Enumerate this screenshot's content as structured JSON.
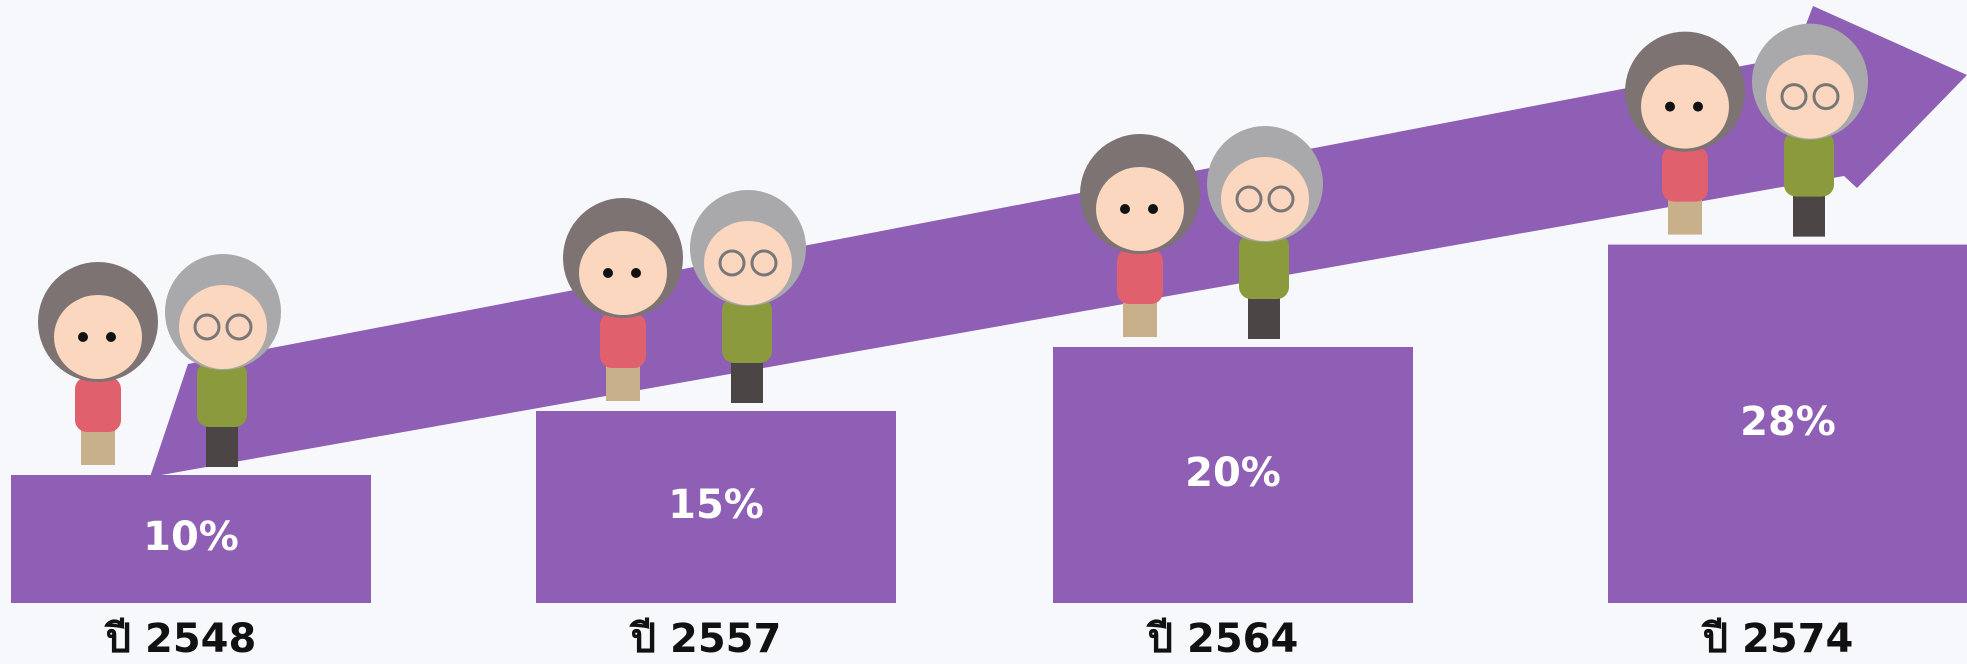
{
  "chart_data": {
    "type": "bar",
    "categories": [
      "ปี 2548",
      "ปี 2557",
      "ปี 2564",
      "ปี 2574"
    ],
    "values": [
      10,
      15,
      20,
      28
    ],
    "value_labels": [
      "10%",
      "15%",
      "20%",
      "28%"
    ],
    "color": "#8e5fb5"
  }
}
